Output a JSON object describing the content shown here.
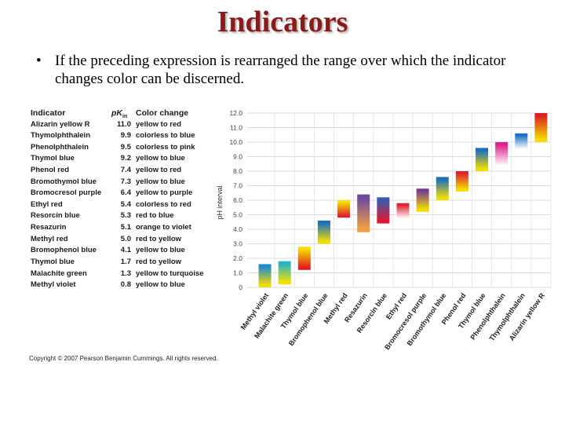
{
  "slide": {
    "title": "Indicators",
    "bullet_mark": "•",
    "bullet_text": "If the preceding expression is rearranged the range over which the indicator changes color  can be discerned."
  },
  "table": {
    "headers": {
      "indicator": "Indicator",
      "pk": "pK",
      "pk_sub": "in",
      "change": "Color change"
    },
    "rows": [
      {
        "name": "Alizarin yellow R",
        "pk": "11.0",
        "change": "yellow to red"
      },
      {
        "name": "Thymolphthalein",
        "pk": "9.9",
        "change": "colorless to blue"
      },
      {
        "name": "Phenolphthalein",
        "pk": "9.5",
        "change": "colorless to pink"
      },
      {
        "name": "Thymol blue",
        "pk": "9.2",
        "change": "yellow to blue"
      },
      {
        "name": "Phenol red",
        "pk": "7.4",
        "change": "yellow to red"
      },
      {
        "name": "Bromothymol blue",
        "pk": "7.3",
        "change": "yellow to blue"
      },
      {
        "name": "Bromocresol purple",
        "pk": "6.4",
        "change": "yellow to purple"
      },
      {
        "name": "Ethyl red",
        "pk": "5.4",
        "change": "colorless to red"
      },
      {
        "name": "Resorcin blue",
        "pk": "5.3",
        "change": "red to blue"
      },
      {
        "name": "Resazurin",
        "pk": "5.1",
        "change": "orange to violet"
      },
      {
        "name": "Methyl red",
        "pk": "5.0",
        "change": "red to yellow"
      },
      {
        "name": "Bromophenol blue",
        "pk": "4.1",
        "change": "yellow to blue"
      },
      {
        "name": "Thymol blue",
        "pk": "1.7",
        "change": "red to yellow"
      },
      {
        "name": "Malachite green",
        "pk": "1.3",
        "change": "yellow to turquoise"
      },
      {
        "name": "Methyl violet",
        "pk": "0.8",
        "change": "yellow to blue"
      }
    ]
  },
  "chart_data": {
    "type": "bar",
    "title": "",
    "xlabel": "",
    "ylabel": "pH interval",
    "ylim": [
      0,
      12
    ],
    "yticks": [
      "0",
      "1.0",
      "2.0",
      "3.0",
      "4.0",
      "5.0",
      "6.0",
      "7.0",
      "8.0",
      "9.0",
      "10.0",
      "11.0",
      "12.0"
    ],
    "grid": true,
    "categories": [
      "Methyl violet",
      "Malachite green",
      "Thymol blue",
      "Bromophenol blue",
      "Methyl red",
      "Resazurin",
      "Resorcin blue",
      "Ethyl red",
      "Bromocresol purple",
      "Bromothymol blue",
      "Phenol red",
      "Thymol blue",
      "Phenolphthalein",
      "Thymolphthalein",
      "Alizarin yellow R"
    ],
    "ranges": [
      {
        "low": 0.0,
        "high": 1.6,
        "from_color": "#f5dc00",
        "to_color": "#1a8ccf"
      },
      {
        "low": 0.2,
        "high": 1.8,
        "from_color": "#f5e000",
        "to_color": "#22b4c8"
      },
      {
        "low": 1.2,
        "high": 2.8,
        "from_color": "#e02020",
        "to_color": "#f5dc00"
      },
      {
        "low": 3.0,
        "high": 4.6,
        "from_color": "#f5dc00",
        "to_color": "#1a6fc0"
      },
      {
        "low": 4.8,
        "high": 6.0,
        "from_color": "#e02030",
        "to_color": "#f5e000"
      },
      {
        "low": 3.8,
        "high": 6.4,
        "from_color": "#f0a040",
        "to_color": "#7048a0"
      },
      {
        "low": 4.4,
        "high": 6.2,
        "from_color": "#e01830",
        "to_color": "#3a5ab0"
      },
      {
        "low": 4.6,
        "high": 5.8,
        "from_color": "#ffffff",
        "to_color": "#e02030"
      },
      {
        "low": 5.2,
        "high": 6.8,
        "from_color": "#f5dc00",
        "to_color": "#7a3c90"
      },
      {
        "low": 6.0,
        "high": 7.6,
        "from_color": "#f5dc00",
        "to_color": "#1a6fc0"
      },
      {
        "low": 6.6,
        "high": 8.0,
        "from_color": "#f5dc00",
        "to_color": "#e02030"
      },
      {
        "low": 8.0,
        "high": 9.6,
        "from_color": "#f5dc00",
        "to_color": "#1a6fc0"
      },
      {
        "low": 8.2,
        "high": 10.0,
        "from_color": "#ffffff",
        "to_color": "#e0208c"
      },
      {
        "low": 9.4,
        "high": 10.6,
        "from_color": "#ffffff",
        "to_color": "#1a6fc0"
      },
      {
        "low": 10.0,
        "high": 12.0,
        "from_color": "#f5dc00",
        "to_color": "#e02020"
      }
    ]
  },
  "copyright": "Copyright © 2007 Pearson Benjamin Cummings. All rights reserved."
}
